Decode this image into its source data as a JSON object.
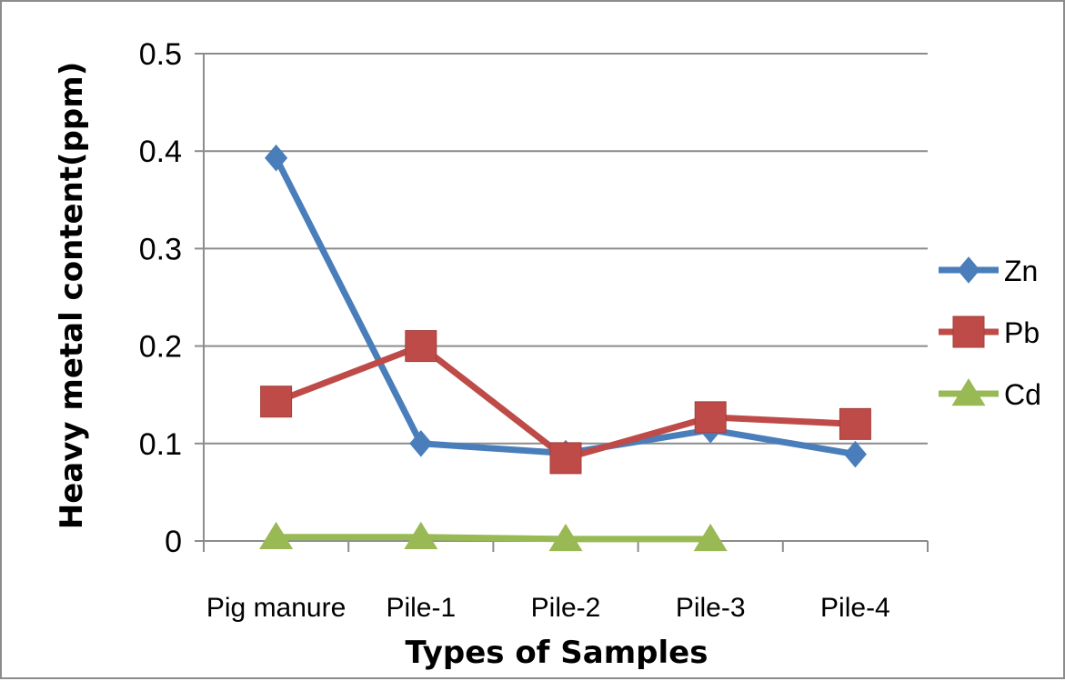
{
  "chart_data": {
    "type": "line",
    "xlabel": "Types of Samples",
    "ylabel": "Heavy metal content(ppm)",
    "categories": [
      "Pig manure",
      "Pile-1",
      "Pile-2",
      "Pile-3",
      "Pile-4"
    ],
    "ylim": [
      0,
      0.5
    ],
    "yticks": [
      "0",
      "0.1",
      "0.2",
      "0.3",
      "0.4",
      "0.5"
    ],
    "grid": true,
    "legend_position": "right",
    "series": [
      {
        "name": "Zn",
        "marker": "diamond",
        "color": "#4a7ebb",
        "values": [
          0.393,
          0.1,
          0.09,
          0.114,
          0.089
        ]
      },
      {
        "name": "Pb",
        "marker": "square",
        "color": "#be4b48",
        "values": [
          0.143,
          0.2,
          0.085,
          0.127,
          0.12
        ]
      },
      {
        "name": "Cd",
        "marker": "triangle",
        "color": "#98b954",
        "values": [
          0.004,
          0.004,
          0.002,
          0.002,
          null
        ]
      }
    ]
  }
}
